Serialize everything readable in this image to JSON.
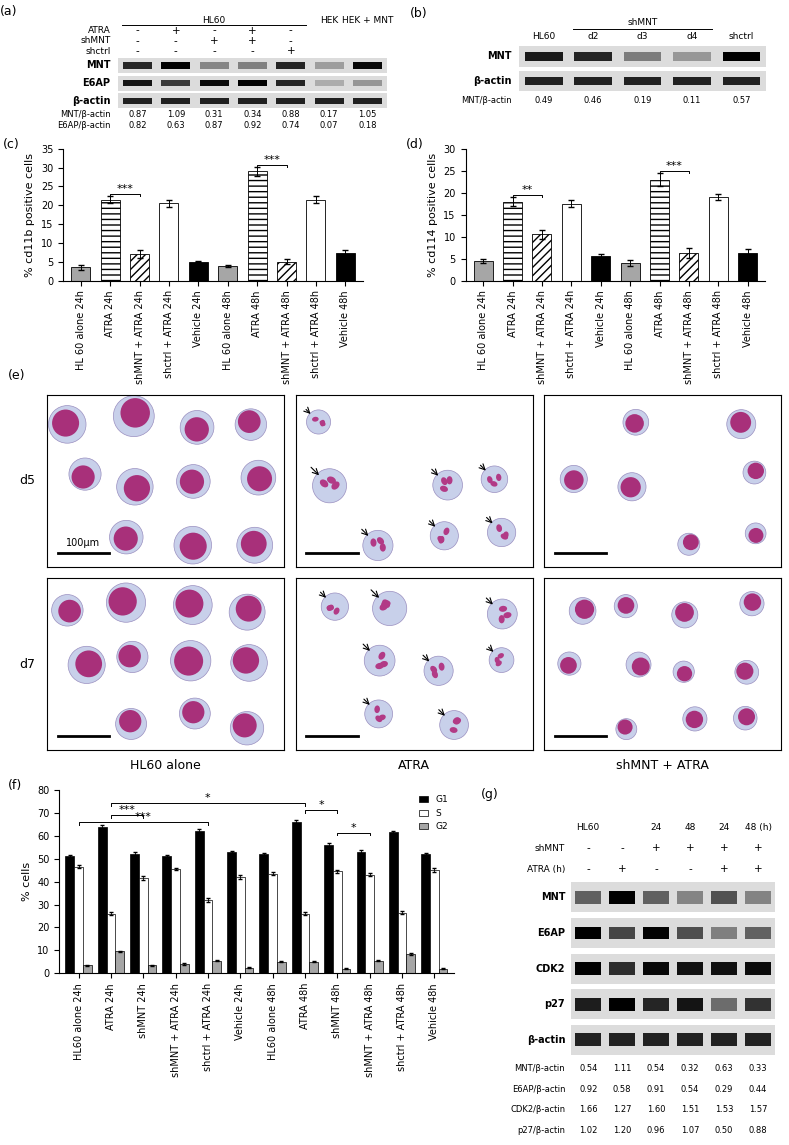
{
  "blots": [
    {
      "label": "(a)",
      "top_groups": [
        {
          "text": "HL60",
          "from": 0,
          "to": 4
        },
        {
          "text": "HEK",
          "from": 5,
          "to": 5
        },
        {
          "text": "HEK + MNT",
          "from": 6,
          "to": 6
        }
      ],
      "lane_labels": null,
      "conditions": [
        {
          "name": "ATRA",
          "signs": [
            "-",
            "+",
            "-",
            "+",
            "-",
            null,
            null
          ]
        },
        {
          "name": "shMNT",
          "signs": [
            "-",
            "-",
            "+",
            "+",
            "-",
            null,
            null
          ]
        },
        {
          "name": "shctrl",
          "signs": [
            "-",
            "-",
            "-",
            "-",
            "+",
            null,
            null
          ]
        }
      ],
      "bands": [
        "MNT",
        "E6AP",
        "β-actin"
      ],
      "quantification": [
        {
          "name": "MNT/β-actin",
          "values": [
            0.87,
            1.09,
            0.31,
            0.34,
            0.88,
            0.17,
            1.05
          ]
        },
        {
          "name": "E6AP/β-actin",
          "values": [
            0.82,
            0.63,
            0.87,
            0.92,
            0.74,
            0.07,
            0.18
          ]
        }
      ]
    },
    {
      "label": "(b)",
      "top_groups": [
        {
          "text": "shMNT",
          "from": 1,
          "to": 3
        }
      ],
      "lane_labels": [
        "HL60",
        "d2",
        "d3",
        "d4",
        "shctrl"
      ],
      "conditions": [],
      "bands": [
        "MNT",
        "β-actin"
      ],
      "quantification": [
        {
          "name": "MNT/β-actin",
          "values": [
            0.49,
            0.46,
            0.19,
            0.11,
            0.57
          ]
        }
      ]
    },
    {
      "label": "(g)",
      "top_groups": [
        {
          "text": "HL60",
          "from": 0,
          "to": 0
        },
        {
          "text": "24",
          "from": 2,
          "to": 2
        },
        {
          "text": "48",
          "from": 3,
          "to": 3
        },
        {
          "text": "24",
          "from": 4,
          "to": 4
        },
        {
          "text": "48 (h)",
          "from": 5,
          "to": 5
        }
      ],
      "lane_labels": null,
      "conditions": [
        {
          "name": "shMNT",
          "signs": [
            "-",
            "-",
            "+",
            "+",
            "+",
            "+"
          ]
        },
        {
          "name": "ATRA (h)",
          "signs": [
            "-",
            "+",
            "-",
            "-",
            "+",
            "+"
          ]
        }
      ],
      "bands": [
        "MNT",
        "E6AP",
        "CDK2",
        "p27",
        "β-actin"
      ],
      "quantification": [
        {
          "name": "MNT/β-actin",
          "values": [
            0.54,
            1.11,
            0.54,
            0.32,
            0.63,
            0.33
          ]
        },
        {
          "name": "E6AP/β-actin",
          "values": [
            0.92,
            0.58,
            0.91,
            0.54,
            0.29,
            0.44
          ]
        },
        {
          "name": "CDK2/β-actin",
          "values": [
            1.66,
            1.27,
            1.6,
            1.51,
            1.53,
            1.57
          ]
        },
        {
          "name": "p27/β-actin",
          "values": [
            1.02,
            1.2,
            0.96,
            1.07,
            0.5,
            0.88
          ]
        }
      ]
    }
  ],
  "chart_data": [
    {
      "label": "(c)",
      "type": "bar",
      "y_label": "% cd11b positive cells",
      "categories": [
        "HL 60 alone 24h",
        "ATRA 24h",
        "shMNT + ATRA 24h",
        "shctrl + ATRA 24h",
        "Vehicle 24h",
        "HL 60 alone 48h",
        "ATRA 48h",
        "shMNT + ATRA 48h",
        "shctrl + ATRA 48h",
        "Vehicle 48h"
      ],
      "values": [
        3.5,
        21.5,
        7.0,
        20.5,
        5.0,
        3.8,
        29.0,
        5.0,
        21.5,
        7.3
      ],
      "errors": [
        0.7,
        1.0,
        1.0,
        1.0,
        0.2,
        0.3,
        1.3,
        0.7,
        1.0,
        0.7
      ],
      "colors": [
        "#a6a6a6",
        "#ffffff",
        "#ffffff",
        "#ffffff",
        "#000000",
        "#a6a6a6",
        "#ffffff",
        "#ffffff",
        "#ffffff",
        "#000000"
      ],
      "ylim": [
        0,
        35
      ],
      "yticks": [
        0,
        5,
        10,
        15,
        20,
        25,
        30,
        35
      ],
      "significance": [
        {
          "from": 1,
          "to": 2,
          "text": "***"
        },
        {
          "from": 6,
          "to": 7,
          "text": "***"
        }
      ]
    },
    {
      "label": "(d)",
      "type": "bar",
      "y_label": "% cd114 positive cells",
      "categories": [
        "HL 60 alone 24h",
        "ATRA 24h",
        "shMNT + ATRA 24h",
        "shctrl + ATRA 24h",
        "Vehicle 24h",
        "HL 60 alone 48h",
        "ATRA 48h",
        "shMNT + ATRA 48h",
        "shctrl + ATRA 48h",
        "Vehicle 48h"
      ],
      "values": [
        4.5,
        18.0,
        10.5,
        17.5,
        5.5,
        4.0,
        23.0,
        6.3,
        19.0,
        6.2
      ],
      "errors": [
        0.4,
        1.0,
        1.0,
        0.8,
        0.6,
        0.7,
        1.5,
        1.2,
        0.6,
        0.9
      ],
      "colors": [
        "#a6a6a6",
        "#ffffff",
        "#ffffff",
        "#ffffff",
        "#000000",
        "#a6a6a6",
        "#ffffff",
        "#ffffff",
        "#ffffff",
        "#000000"
      ],
      "ylim": [
        0,
        30
      ],
      "yticks": [
        0,
        5,
        10,
        15,
        20,
        25,
        30
      ],
      "significance": [
        {
          "from": 1,
          "to": 2,
          "text": "**"
        },
        {
          "from": 6,
          "to": 7,
          "text": "***"
        }
      ]
    },
    {
      "label": "(f)",
      "type": "bar",
      "y_label": "% cells",
      "legend": "upper right",
      "categories": [
        "HL60 alone 24h",
        "ATRA 24h",
        "shMNT 24h",
        "shMNT + ATRA 24h",
        "shctrl + ATRA 24h",
        "Vehicle 24h",
        "HL60 alone 48h",
        "ATRA 48h",
        "shMNT 48h",
        "shMNT + ATRA 48h",
        "shctrl + ATRA 48h",
        "Vehicle 48h"
      ],
      "series": [
        {
          "name": "G1",
          "color": "#000000",
          "values": [
            51,
            64,
            52,
            51,
            62,
            53,
            52,
            66,
            56,
            53,
            61.5,
            52
          ],
          "errors": [
            0.8,
            0.8,
            0.8,
            0.6,
            0.8,
            0.6,
            0.6,
            0.8,
            1.0,
            0.8,
            0.6,
            0.6
          ]
        },
        {
          "name": "S",
          "color": "#ffffff",
          "values": [
            46.5,
            26,
            41.5,
            45.5,
            32,
            42,
            43.5,
            26,
            44.5,
            43,
            26.5,
            45
          ],
          "errors": [
            0.6,
            0.6,
            0.8,
            0.6,
            0.8,
            0.8,
            0.6,
            0.6,
            0.8,
            0.6,
            0.6,
            0.8
          ]
        },
        {
          "name": "G2",
          "color": "#a6a6a6",
          "values": [
            3.5,
            9.5,
            3.5,
            4,
            5.5,
            2.5,
            5,
            5,
            2,
            5.5,
            8.5,
            2
          ],
          "errors": [
            0.3,
            0.4,
            0.3,
            0.3,
            0.3,
            0.2,
            0.3,
            0.3,
            0.2,
            0.3,
            0.4,
            0.2
          ]
        }
      ],
      "ylim": [
        0,
        80
      ],
      "yticks": [
        0,
        10,
        20,
        30,
        40,
        50,
        60,
        70,
        80
      ],
      "significance": [
        {
          "from": 0,
          "to": 4,
          "text": "***"
        },
        {
          "from": 1,
          "to": 2,
          "text": "***"
        },
        {
          "from": 1,
          "to": 7,
          "text": "*"
        },
        {
          "from": 7,
          "to": 8,
          "text": "*"
        },
        {
          "from": 8,
          "to": 9,
          "text": "*"
        }
      ]
    }
  ],
  "micrographs": {
    "label": "(e)",
    "row_labels": [
      "d5",
      "d7"
    ],
    "column_labels": [
      "HL60 alone",
      "ATRA",
      "shMNT + ATRA"
    ],
    "scale_bar": "100µm"
  }
}
